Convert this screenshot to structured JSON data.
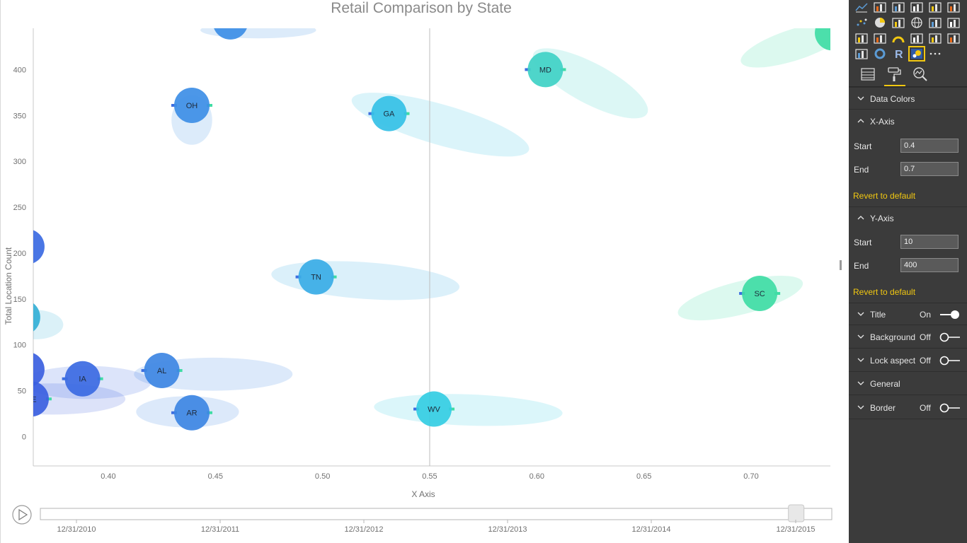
{
  "report": {
    "title": "Retail Comparison by State"
  },
  "chart_data": {
    "type": "scatter",
    "title": "Retail Comparison by State",
    "xlabel": "X Axis",
    "ylabel": "Total Location Count",
    "xlim": [
      0.365,
      0.737
    ],
    "ylim": [
      -32,
      445
    ],
    "x_ticks": [
      "0.40",
      "0.45",
      "0.50",
      "0.55",
      "0.60",
      "0.65",
      "0.70"
    ],
    "y_ticks": [
      "0",
      "50",
      "100",
      "150",
      "200",
      "250",
      "300",
      "350",
      "400"
    ],
    "grid": false,
    "reference_line_x": 0.55,
    "timeline": {
      "dates": [
        "12/31/2010",
        "12/31/2011",
        "12/31/2012",
        "12/31/2013",
        "12/31/2014",
        "12/31/2015"
      ],
      "current": "12/31/2015",
      "current_fraction": 0.955
    },
    "points": [
      {
        "label": "MD",
        "x": 0.604,
        "y": 400,
        "color": "#3fd1c6",
        "trail": {
          "cx": 0.625,
          "cy": 385,
          "rx": 0.03,
          "ry": 22,
          "rotate": 28
        }
      },
      {
        "label": "OH",
        "x": 0.439,
        "y": 361,
        "color": "#3d8ee6",
        "trail": {
          "cx": 0.439,
          "cy": 345,
          "rx": 0.0095,
          "ry": 27,
          "rotate": 0
        }
      },
      {
        "label": "GA",
        "x": 0.531,
        "y": 352,
        "color": "#35c0e6",
        "trail": {
          "cx": 0.555,
          "cy": 340,
          "rx": 0.043,
          "ry": 22,
          "rotate": 16
        }
      },
      {
        "label": "TN",
        "x": 0.497,
        "y": 174,
        "color": "#39ace6",
        "trail": {
          "cx": 0.52,
          "cy": 170,
          "rx": 0.044,
          "ry": 20,
          "rotate": 4
        }
      },
      {
        "label": "SC",
        "x": 0.704,
        "y": 156,
        "color": "#3fdca5",
        "trail": {
          "cx": 0.695,
          "cy": 151,
          "rx": 0.03,
          "ry": 18,
          "rotate": -14
        }
      },
      {
        "label": "AL",
        "x": 0.425,
        "y": 72,
        "color": "#3d86e3",
        "trail": {
          "cx": 0.449,
          "cy": 68,
          "rx": 0.037,
          "ry": 18,
          "rotate": 0
        }
      },
      {
        "label": "IA",
        "x": 0.388,
        "y": 63,
        "color": "#3b6ae2",
        "trail": {
          "cx": 0.39,
          "cy": 59,
          "rx": 0.03,
          "ry": 18,
          "rotate": 0
        }
      },
      {
        "label": "AR",
        "x": 0.439,
        "y": 26,
        "color": "#3d86e3",
        "trail": {
          "cx": 0.437,
          "cy": 27,
          "rx": 0.024,
          "ry": 17,
          "rotate": 0
        }
      },
      {
        "label": "WV",
        "x": 0.552,
        "y": 30,
        "color": "#35cde3",
        "trail": {
          "cx": 0.568,
          "cy": 29,
          "rx": 0.044,
          "ry": 17,
          "rotate": 2
        }
      },
      {
        "label": "NE",
        "x": 0.364,
        "y": 41,
        "color": "#3b5fe0",
        "trail": {
          "cx": 0.374,
          "cy": 41,
          "rx": 0.034,
          "ry": 17,
          "rotate": 0
        }
      }
    ],
    "clipped_points": [
      {
        "x": 0.457,
        "y": 452,
        "color": "#3d8ee6",
        "trail": {
          "cx": 0.47,
          "cy": 443,
          "rx": 0.027,
          "ry": 9,
          "rotate": 0
        }
      },
      {
        "x": 0.738,
        "y": 440,
        "color": "#3fdca5",
        "trail": {
          "cx": 0.72,
          "cy": 427,
          "rx": 0.026,
          "ry": 17,
          "rotate": -18
        }
      },
      {
        "x": 0.362,
        "y": 207,
        "color": "#3b6ae2",
        "trail": null
      },
      {
        "x": 0.36,
        "y": 130,
        "color": "#35b0d6",
        "trail": {
          "cx": 0.366,
          "cy": 122,
          "rx": 0.013,
          "ry": 16,
          "rotate": 0
        }
      },
      {
        "x": 0.362,
        "y": 73,
        "color": "#3b5fe0",
        "trail": null
      }
    ]
  },
  "pane": {
    "tabs": [
      {
        "icon": "fields-icon",
        "active": false
      },
      {
        "icon": "paint-roller-icon",
        "active": true
      },
      {
        "icon": "analytics-magnifier-icon",
        "active": false
      }
    ],
    "sections": {
      "data_colors": {
        "label": "Data Colors"
      },
      "x_axis": {
        "label": "X-Axis",
        "start_label": "Start",
        "start_value": "0.4",
        "end_label": "End",
        "end_value": "0.7",
        "revert": "Revert to default"
      },
      "y_axis": {
        "label": "Y-Axis",
        "start_label": "Start",
        "start_value": "10",
        "end_label": "End",
        "end_value": "400",
        "revert": "Revert to default"
      },
      "title": {
        "label": "Title",
        "state": "On"
      },
      "background": {
        "label": "Background",
        "state": "Off"
      },
      "lock_aspect": {
        "label": "Lock aspect",
        "state": "Off"
      },
      "general": {
        "label": "General"
      },
      "border": {
        "label": "Border",
        "state": "Off"
      }
    },
    "colors": {
      "accent": "#f2c811",
      "toggle_on": "#ffffff",
      "toggle_off": "#ffffff"
    }
  }
}
